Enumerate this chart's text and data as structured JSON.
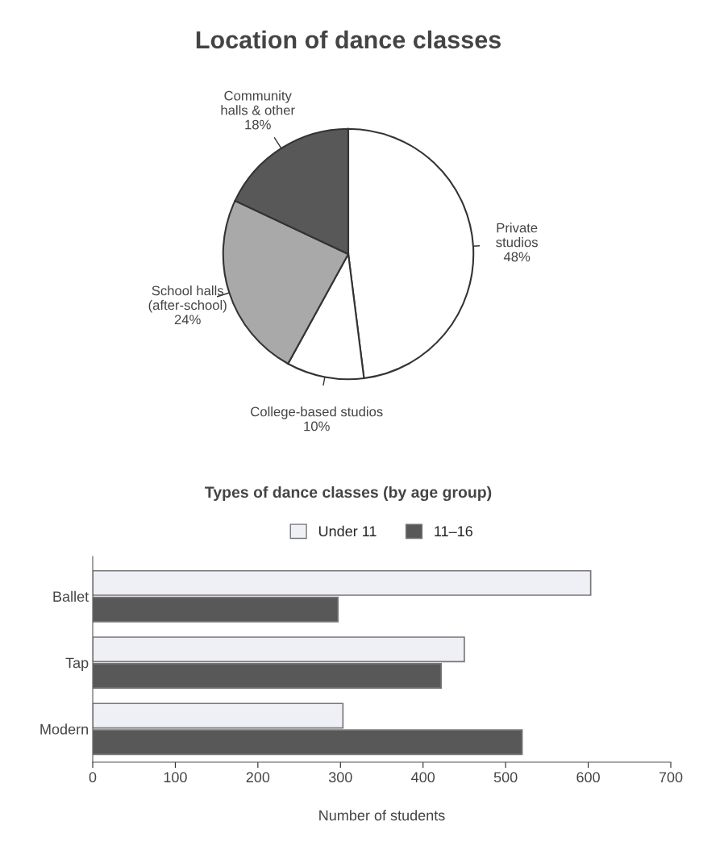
{
  "chart_data": [
    {
      "type": "pie",
      "title": "Location of dance classes",
      "categories": [
        "Private\nstudios",
        "College-based studios",
        "School halls\n(after-school)",
        "Community\nhalls & other"
      ],
      "values": [
        48,
        10,
        24,
        18
      ],
      "value_labels": [
        "48%",
        "10%",
        "24%",
        "18%"
      ],
      "colors": [
        "#ffffff",
        "#ffffff",
        "#a9a9a9",
        "#585858"
      ]
    },
    {
      "type": "bar",
      "orientation": "horizontal",
      "title": "Types of dance classes (by age group)",
      "xlabel": "Number of students",
      "categories": [
        "Ballet",
        "Tap",
        "Modern"
      ],
      "series": [
        {
          "name": "Under 11",
          "color": "#eef0f6",
          "values": [
            603,
            450,
            303
          ]
        },
        {
          "name": "11–16",
          "color": "#585858",
          "values": [
            297,
            422,
            520
          ]
        }
      ],
      "xlim": [
        0,
        700
      ],
      "xticks": [
        0,
        100,
        200,
        300,
        400,
        500,
        600,
        700
      ],
      "legend": "top",
      "grid": false
    }
  ]
}
